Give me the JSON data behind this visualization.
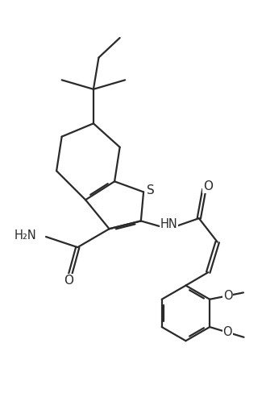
{
  "bg_color": "#ffffff",
  "line_color": "#2a2a2a",
  "line_width": 1.6,
  "figsize": [
    3.3,
    5.03
  ],
  "dpi": 100,
  "xlim": [
    -0.5,
    9.5
  ],
  "ylim": [
    -0.5,
    13.5
  ]
}
